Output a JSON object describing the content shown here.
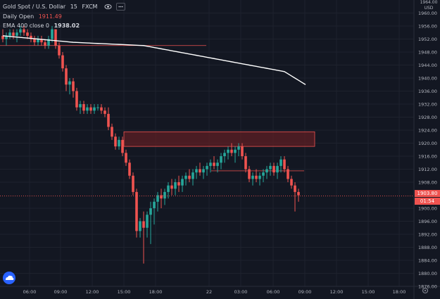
{
  "legend": {
    "symbol": "Gold Spot / U.S. Dollar",
    "interval": "15",
    "exchange": "FXCM",
    "daily_open_label": "Daily Open",
    "daily_open_value": "1911.49",
    "ema_label": "EMA 400 close 0",
    "ema_value": "1938.02"
  },
  "price_axis": {
    "currency": "USD",
    "top_partial": "1964.00",
    "ticks": [
      "1960.00",
      "1956.00",
      "1952.00",
      "1948.00",
      "1944.00",
      "1940.00",
      "1936.00",
      "1932.00",
      "1928.00",
      "1924.00",
      "1920.00",
      "1916.00",
      "1912.00",
      "1908.00",
      "1900.00",
      "1896.00",
      "1892.00",
      "1888.00",
      "1884.00",
      "1880.00",
      "1876.00"
    ],
    "tick_values": [
      1960,
      1956,
      1952,
      1948,
      1944,
      1940,
      1936,
      1932,
      1928,
      1924,
      1920,
      1916,
      1912,
      1908,
      1900,
      1896,
      1892,
      1888,
      1884,
      1880,
      1876
    ],
    "current_price": "1903.80",
    "countdown": "01:54"
  },
  "time_axis": {
    "labels": [
      "06:00",
      "09:00",
      "12:00",
      "15:00",
      "18:00",
      "22",
      "03:00",
      "06:00",
      "09:00",
      "12:00",
      "15:00",
      "18:00"
    ]
  },
  "colors": {
    "background": "#131722",
    "up": "#26a69a",
    "down": "#ef5350",
    "ema": "#ffffff",
    "zone_fill": "#5d1f24",
    "zone_border": "#ef5350",
    "grid": "#1e222d"
  },
  "chart_data": {
    "type": "candlestick",
    "price_range": [
      1876,
      1964
    ],
    "current_price": 1903.8,
    "daily_open": 1911.49,
    "ema_400": 1938.02,
    "candles": [
      [
        1953,
        1955,
        1951,
        1952
      ],
      [
        1952,
        1954,
        1950,
        1953
      ],
      [
        1953,
        1955,
        1952,
        1954
      ],
      [
        1954,
        1955,
        1952,
        1953
      ],
      [
        1953,
        1955,
        1951,
        1954
      ],
      [
        1954,
        1956,
        1953,
        1955
      ],
      [
        1955,
        1956,
        1953,
        1954
      ],
      [
        1954,
        1955,
        1952,
        1953
      ],
      [
        1953,
        1954,
        1951,
        1952
      ],
      [
        1952,
        1953,
        1950,
        1951
      ],
      [
        1951,
        1953,
        1950,
        1952
      ],
      [
        1952,
        1953,
        1950,
        1951
      ],
      [
        1951,
        1952,
        1949,
        1950
      ],
      [
        1950,
        1953,
        1949,
        1952
      ],
      [
        1952,
        1956,
        1951,
        1955
      ],
      [
        1955,
        1955,
        1949,
        1950
      ],
      [
        1950,
        1951,
        1946,
        1947
      ],
      [
        1947,
        1948,
        1942,
        1943
      ],
      [
        1943,
        1944,
        1936,
        1938
      ],
      [
        1938,
        1940,
        1935,
        1939
      ],
      [
        1939,
        1940,
        1934,
        1936
      ],
      [
        1936,
        1937,
        1930,
        1931
      ],
      [
        1931,
        1933,
        1929,
        1932
      ],
      [
        1932,
        1933,
        1929,
        1930
      ],
      [
        1930,
        1932,
        1929,
        1931
      ],
      [
        1931,
        1932,
        1929,
        1930
      ],
      [
        1930,
        1932,
        1929,
        1931
      ],
      [
        1931,
        1932,
        1930,
        1931
      ],
      [
        1931,
        1932,
        1929,
        1930
      ],
      [
        1930,
        1931,
        1928,
        1929
      ],
      [
        1929,
        1931,
        1924,
        1925
      ],
      [
        1925,
        1926,
        1921,
        1922
      ],
      [
        1922,
        1923,
        1918,
        1919
      ],
      [
        1919,
        1922,
        1918,
        1921
      ],
      [
        1921,
        1922,
        1916,
        1917
      ],
      [
        1917,
        1918,
        1913,
        1914
      ],
      [
        1914,
        1915,
        1909,
        1910
      ],
      [
        1910,
        1911,
        1904,
        1905
      ],
      [
        1905,
        1906,
        1891,
        1893
      ],
      [
        1893,
        1897,
        1891,
        1896
      ],
      [
        1896,
        1899,
        1883,
        1894
      ],
      [
        1894,
        1899,
        1891,
        1898
      ],
      [
        1898,
        1902,
        1889,
        1900
      ],
      [
        1900,
        1903,
        1895,
        1902
      ],
      [
        1902,
        1905,
        1899,
        1904
      ],
      [
        1904,
        1906,
        1900,
        1903
      ],
      [
        1903,
        1906,
        1901,
        1905
      ],
      [
        1905,
        1908,
        1903,
        1907
      ],
      [
        1907,
        1909,
        1904,
        1906
      ],
      [
        1906,
        1909,
        1904,
        1908
      ],
      [
        1908,
        1910,
        1905,
        1907
      ],
      [
        1907,
        1910,
        1905,
        1909
      ],
      [
        1909,
        1911,
        1907,
        1910
      ],
      [
        1910,
        1912,
        1908,
        1909
      ],
      [
        1909,
        1912,
        1907,
        1911
      ],
      [
        1911,
        1913,
        1909,
        1912
      ],
      [
        1912,
        1914,
        1910,
        1911
      ],
      [
        1911,
        1913,
        1909,
        1912
      ],
      [
        1912,
        1914,
        1910,
        1913
      ],
      [
        1913,
        1915,
        1911,
        1914
      ],
      [
        1914,
        1916,
        1912,
        1913
      ],
      [
        1913,
        1915,
        1911,
        1914
      ],
      [
        1914,
        1917,
        1912,
        1916
      ],
      [
        1916,
        1918,
        1914,
        1917
      ],
      [
        1917,
        1919,
        1915,
        1918
      ],
      [
        1918,
        1920,
        1916,
        1917
      ],
      [
        1917,
        1919,
        1914,
        1918
      ],
      [
        1918,
        1920,
        1916,
        1919
      ],
      [
        1919,
        1920,
        1915,
        1916
      ],
      [
        1916,
        1917,
        1911,
        1912
      ],
      [
        1912,
        1913,
        1908,
        1909
      ],
      [
        1909,
        1911,
        1907,
        1910
      ],
      [
        1910,
        1912,
        1908,
        1909
      ],
      [
        1909,
        1911,
        1907,
        1910
      ],
      [
        1910,
        1912,
        1908,
        1911
      ],
      [
        1911,
        1913,
        1909,
        1912
      ],
      [
        1912,
        1914,
        1910,
        1913
      ],
      [
        1913,
        1914,
        1910,
        1911
      ],
      [
        1911,
        1914,
        1909,
        1913
      ],
      [
        1913,
        1916,
        1911,
        1915
      ],
      [
        1915,
        1916,
        1911,
        1912
      ],
      [
        1912,
        1913,
        1908,
        1909
      ],
      [
        1909,
        1910,
        1906,
        1907
      ],
      [
        1907,
        1908,
        1899,
        1905
      ],
      [
        1905,
        1906,
        1902,
        1904
      ]
    ],
    "ema_points": [
      [
        0,
        1953
      ],
      [
        20,
        1951
      ],
      [
        40,
        1950
      ],
      [
        60,
        1946
      ],
      [
        70,
        1944
      ],
      [
        80,
        1942
      ],
      [
        86,
        1938
      ]
    ],
    "daily_open_line": [
      1911.49
    ],
    "resistance_line": 1950,
    "supply_zone": [
      1919,
      1923.5
    ]
  }
}
